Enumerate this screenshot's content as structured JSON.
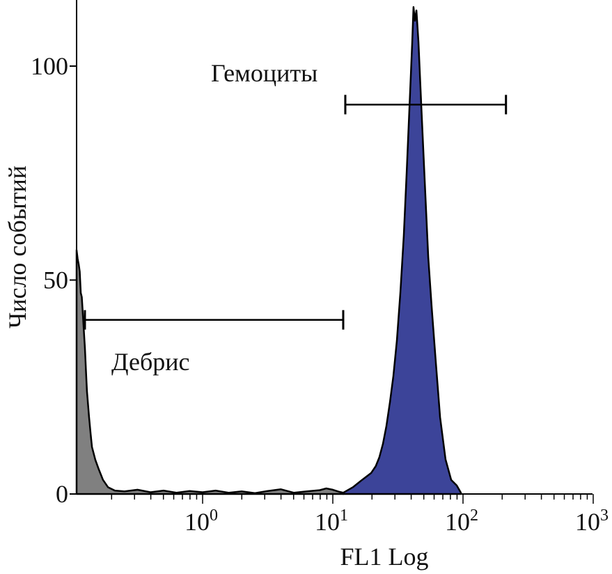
{
  "chart_data": {
    "type": "area",
    "title": "",
    "xlabel": "FL1 Log",
    "ylabel": "Число событий",
    "x_scale": "log10",
    "xlim_log10": [
      -0.97,
      3
    ],
    "ylim": [
      0,
      115
    ],
    "x_ticks": [
      {
        "base": "10",
        "exp": "0",
        "log": 0
      },
      {
        "base": "10",
        "exp": "1",
        "log": 1
      },
      {
        "base": "10",
        "exp": "2",
        "log": 2
      },
      {
        "base": "10",
        "exp": "3",
        "log": 3
      }
    ],
    "y_ticks": [
      {
        "label": "0",
        "value": 0
      },
      {
        "label": "50",
        "value": 50
      },
      {
        "label": "100",
        "value": 100
      }
    ],
    "grid": false,
    "series": [
      {
        "name": "Дебрис",
        "color": "#808080",
        "points_log10x_count": [
          [
            -0.968,
            57
          ],
          [
            -0.96,
            55
          ],
          [
            -0.952,
            53.7
          ],
          [
            -0.944,
            52
          ],
          [
            -0.936,
            47
          ],
          [
            -0.928,
            46
          ],
          [
            -0.92,
            42
          ],
          [
            -0.912,
            38
          ],
          [
            -0.904,
            34
          ],
          [
            -0.896,
            29
          ],
          [
            -0.888,
            24
          ],
          [
            -0.88,
            21
          ],
          [
            -0.872,
            18
          ],
          [
            -0.86,
            14
          ],
          [
            -0.85,
            11
          ],
          [
            -0.824,
            8
          ],
          [
            -0.797,
            5.7
          ],
          [
            -0.765,
            3.3
          ],
          [
            -0.727,
            1.6
          ],
          [
            -0.674,
            0.8
          ],
          [
            -0.6,
            0.6
          ],
          [
            -0.5,
            1.0
          ],
          [
            -0.4,
            0.4
          ],
          [
            -0.3,
            0.8
          ],
          [
            -0.2,
            0.3
          ],
          [
            -0.1,
            0.7
          ],
          [
            0,
            0.4
          ],
          [
            0.1,
            0.8
          ],
          [
            0.2,
            0.3
          ],
          [
            0.3,
            0.6
          ],
          [
            0.4,
            0.2
          ],
          [
            0.5,
            0.7
          ],
          [
            0.6,
            1.1
          ],
          [
            0.7,
            0.3
          ],
          [
            0.8,
            0.6
          ],
          [
            0.9,
            0.9
          ],
          [
            0.95,
            1.3
          ],
          [
            1.0,
            1.0
          ],
          [
            1.05,
            0.5
          ],
          [
            1.08,
            0.3
          ]
        ]
      },
      {
        "name": "Гемоциты",
        "color": "#3c4499",
        "points_log10x_count": [
          [
            1.08,
            0.3
          ],
          [
            1.155,
            1.6
          ],
          [
            1.225,
            3.3
          ],
          [
            1.294,
            4.9
          ],
          [
            1.33,
            6.5
          ],
          [
            1.358,
            8.6
          ],
          [
            1.385,
            11.7
          ],
          [
            1.412,
            15.9
          ],
          [
            1.439,
            21.5
          ],
          [
            1.465,
            27.6
          ],
          [
            1.492,
            35.8
          ],
          [
            1.519,
            47.2
          ],
          [
            1.545,
            60.2
          ],
          [
            1.567,
            74.8
          ],
          [
            1.583,
            86.2
          ],
          [
            1.599,
            97.6
          ],
          [
            1.61,
            105.7
          ],
          [
            1.62,
            113.8
          ],
          [
            1.631,
            110.6
          ],
          [
            1.642,
            113
          ],
          [
            1.658,
            105.7
          ],
          [
            1.679,
            91
          ],
          [
            1.706,
            73.2
          ],
          [
            1.733,
            55.3
          ],
          [
            1.759,
            43.9
          ],
          [
            1.791,
            30.9
          ],
          [
            1.824,
            17.9
          ],
          [
            1.866,
            8.1
          ],
          [
            1.909,
            3.3
          ],
          [
            1.952,
            2
          ],
          [
            1.984,
            0.3
          ]
        ]
      }
    ],
    "gates": [
      {
        "label": "Дебрис",
        "y": 40.7,
        "x_log10": [
          -0.904,
          1.08
        ]
      },
      {
        "label": "Гемоциты",
        "y": 91,
        "x_log10": [
          1.096,
          2.33
        ]
      }
    ]
  }
}
